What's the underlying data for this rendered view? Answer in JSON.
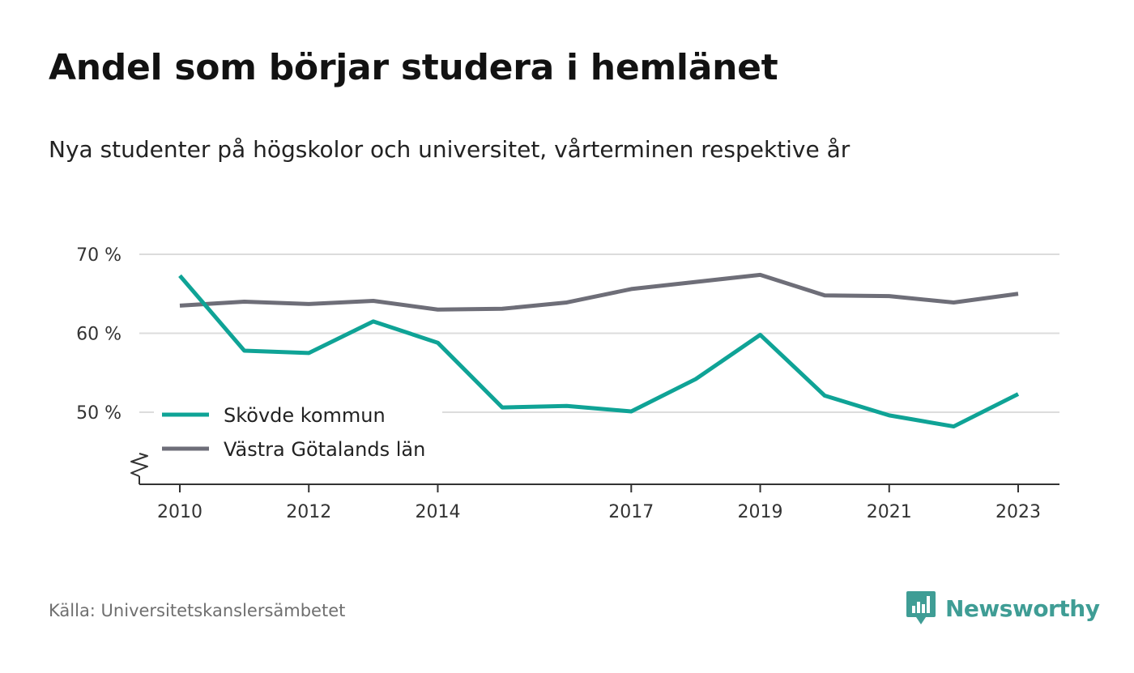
{
  "title": "Andel som börjar studera i hemlänet",
  "subtitle": "Nya studenter på högskolor och universitet, vårterminen respektive år",
  "source": "Källa: Universitetskanslersämbetet",
  "brand": {
    "name": "Newsworthy",
    "color": "#3f9d95",
    "icon": "newsworthy-logo-icon"
  },
  "chart_data": {
    "type": "line",
    "x": [
      2010,
      2011,
      2012,
      2013,
      2014,
      2015,
      2016,
      2017,
      2018,
      2019,
      2020,
      2021,
      2022,
      2023
    ],
    "xticks": [
      2010,
      2012,
      2014,
      2017,
      2019,
      2021,
      2023
    ],
    "yticks": [
      50,
      60,
      70
    ],
    "ytick_labels": [
      "50 %",
      "60 %",
      "70 %"
    ],
    "ylim": [
      41,
      70
    ],
    "xlim": [
      2009.4,
      2023.65
    ],
    "y_axis_break": true,
    "grid": true,
    "legend_position": "bottom-left",
    "series": [
      {
        "name": "Skövde kommun",
        "color": "#0fa396",
        "values": [
          67.3,
          57.8,
          57.5,
          61.5,
          58.8,
          50.6,
          50.8,
          50.1,
          54.2,
          59.8,
          52.1,
          49.6,
          48.2,
          52.3
        ]
      },
      {
        "name": "Västra Götalands län",
        "color": "#6e6e78",
        "values": [
          63.5,
          64.0,
          63.7,
          64.1,
          63.0,
          63.1,
          63.9,
          65.6,
          66.5,
          67.4,
          64.8,
          64.7,
          63.9,
          65.0
        ]
      }
    ]
  }
}
